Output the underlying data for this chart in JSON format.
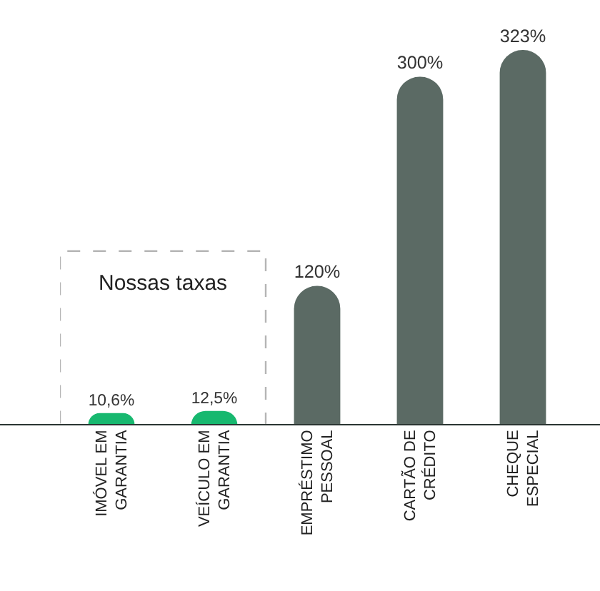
{
  "chart_data": {
    "type": "bar",
    "categories": [
      "IMÓVEL EM\nGARANTIA",
      "VEÍCULO EM\nGARANTIA",
      "EMPRÉSTIMO\nPESSOAL",
      "CARTÃO DE\nCRÉDITO",
      "CHEQUE\nESPECIAL"
    ],
    "values": [
      10.6,
      12.5,
      120,
      300,
      323
    ],
    "colors": [
      "#17b86f",
      "#17b86f",
      "#5b6a64",
      "#5b6a64",
      "#5b6a64"
    ],
    "value_labels": [
      "10,6%",
      "12,5%",
      "120%",
      "300%",
      "323%"
    ],
    "ylim": [
      0,
      366
    ],
    "tick_labels": "x",
    "annotations": [
      "Nossas taxas"
    ]
  }
}
